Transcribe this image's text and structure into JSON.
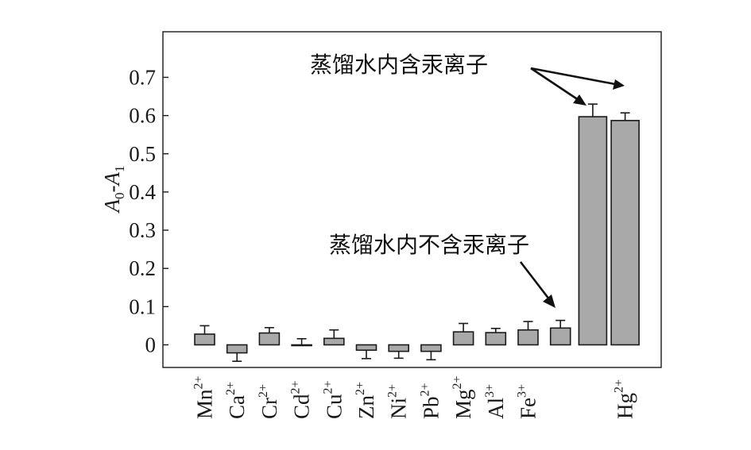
{
  "chart_data": {
    "type": "bar",
    "title": "",
    "xlabel": "",
    "ylabel": {
      "main": "A",
      "sub0": "0",
      "dash": "-",
      "main2": "A",
      "sub1": "1"
    },
    "ylim": [
      -0.05,
      0.7
    ],
    "yticks": [
      "0",
      "0.1",
      "0.2",
      "0.3",
      "0.4",
      "0.5",
      "0.6",
      "0.7"
    ],
    "ytick_values": [
      0,
      0.1,
      0.2,
      0.3,
      0.4,
      0.5,
      0.6,
      0.7
    ],
    "grid": false,
    "categories": [
      {
        "base": "Mn",
        "charge": "2+"
      },
      {
        "base": "Ca",
        "charge": "2+"
      },
      {
        "base": "Cr",
        "charge": "2+"
      },
      {
        "base": "Cd",
        "charge": "2+"
      },
      {
        "base": "Cu",
        "charge": "2+"
      },
      {
        "base": "Zn",
        "charge": "2+"
      },
      {
        "base": "Ni",
        "charge": "2+"
      },
      {
        "base": "Pb",
        "charge": "2+"
      },
      {
        "base": "Mg",
        "charge": "2+"
      },
      {
        "base": "Al",
        "charge": "3+"
      },
      {
        "base": "Fe",
        "charge": "3+"
      },
      {
        "base": "",
        "charge": ""
      },
      {
        "base": "",
        "charge": ""
      },
      {
        "base": "Hg",
        "charge": "2+"
      }
    ],
    "values": [
      0.028,
      -0.021,
      0.031,
      0.0,
      0.017,
      -0.014,
      -0.017,
      -0.017,
      0.034,
      0.032,
      0.039,
      0.044,
      0.597,
      0.587
    ],
    "errors": [
      0.022,
      0.022,
      0.014,
      0.016,
      0.022,
      0.022,
      0.018,
      0.022,
      0.022,
      0.011,
      0.022,
      0.02,
      0.033,
      0.02
    ],
    "annotations": [
      {
        "text": "蒸馏水内含汞离子"
      },
      {
        "text": "蒸馏水内不含汞离子"
      }
    ],
    "colors": {
      "bar": "#a9a9a9",
      "edge": "#1a1a1a"
    }
  }
}
